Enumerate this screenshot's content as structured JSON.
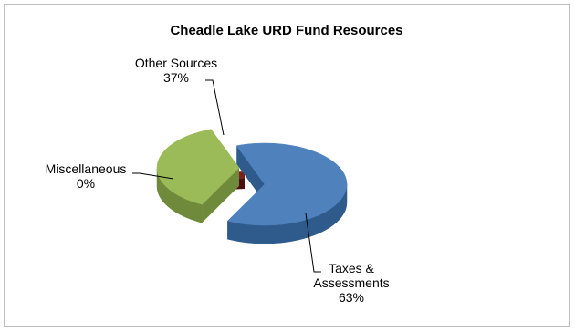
{
  "chart_data": {
    "type": "pie",
    "title": "Cheadle Lake URD Fund Resources",
    "slices": [
      {
        "label": "Taxes & Assessments",
        "label_lines": [
          "Taxes &",
          "Assessments"
        ],
        "value": 63,
        "value_label": "63%",
        "color": "#4f81bd",
        "side_color": "#2f5a8c",
        "exploded": true
      },
      {
        "label": "Miscellaneous",
        "label_lines": [
          "Miscellaneous"
        ],
        "value": 0,
        "value_label": "0%",
        "color": "#7b1f1f",
        "side_color": "#4d1010",
        "exploded": false
      },
      {
        "label": "Other Sources",
        "label_lines": [
          "Other Sources"
        ],
        "value": 37,
        "value_label": "37%",
        "color": "#9bbb59",
        "side_color": "#6f8a3a",
        "exploded": false
      }
    ],
    "legend": "none",
    "style": "3d-exploded"
  }
}
